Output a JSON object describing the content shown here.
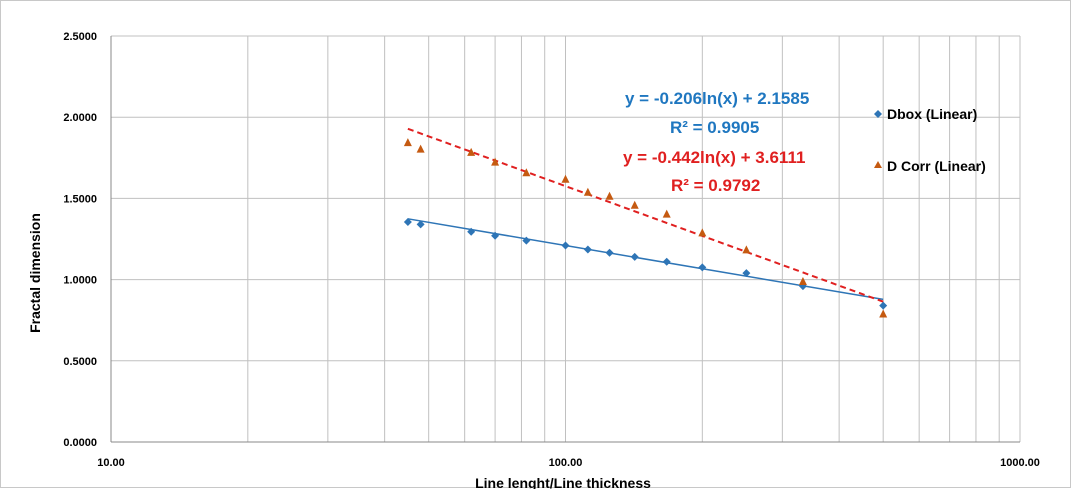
{
  "chart_data": {
    "type": "scatter",
    "title": "",
    "xlabel": "Line lenght/Line thickness",
    "ylabel": "Fractal dimension",
    "x_scale": "log",
    "xlim": [
      10,
      1000
    ],
    "ylim": [
      0,
      2.5
    ],
    "x_tick_values": [
      10,
      100,
      1000
    ],
    "x_tick_labels": [
      "10.00",
      "100.00",
      "1000.00"
    ],
    "y_tick_values": [
      0,
      0.5,
      1.0,
      1.5,
      2.0,
      2.5
    ],
    "y_tick_labels": [
      "0.0000",
      "0.5000",
      "1.0000",
      "1.5000",
      "2.0000",
      "2.5000"
    ],
    "grid": true,
    "legend_position": "right",
    "series": [
      {
        "key": "dbox",
        "legend_label": "Dbox (Linear)",
        "marker": "diamond",
        "color": "#2e75b6",
        "points": [
          [
            45,
            1.355
          ],
          [
            48,
            1.34
          ],
          [
            62,
            1.295
          ],
          [
            70,
            1.27
          ],
          [
            82,
            1.24
          ],
          [
            100,
            1.21
          ],
          [
            112,
            1.185
          ],
          [
            125,
            1.165
          ],
          [
            142,
            1.14
          ],
          [
            167,
            1.11
          ],
          [
            200,
            1.075
          ],
          [
            250,
            1.04
          ],
          [
            333,
            0.96
          ],
          [
            500,
            0.84
          ]
        ],
        "trendline": {
          "type": "log",
          "a": -0.206,
          "b": 2.1585,
          "x_range": [
            45,
            500
          ],
          "style": "solid",
          "color": "#2e75b6",
          "equation": "y = -0.206ln(x) + 2.1585",
          "r2": "R² = 0.9905",
          "label_color": "#1f77c0"
        }
      },
      {
        "key": "dcorr",
        "legend_label": "D Corr (Linear)",
        "marker": "triangle",
        "color": "#c55a11",
        "points": [
          [
            45,
            1.84
          ],
          [
            48,
            1.8
          ],
          [
            62,
            1.78
          ],
          [
            70,
            1.72
          ],
          [
            82,
            1.655
          ],
          [
            100,
            1.615
          ],
          [
            112,
            1.535
          ],
          [
            125,
            1.51
          ],
          [
            142,
            1.455
          ],
          [
            167,
            1.4
          ],
          [
            200,
            1.285
          ],
          [
            250,
            1.18
          ],
          [
            333,
            0.985
          ],
          [
            500,
            0.785
          ]
        ],
        "trendline": {
          "type": "log",
          "a": -0.442,
          "b": 3.6111,
          "x_range": [
            45,
            500
          ],
          "style": "dashed",
          "color": "#e02020",
          "equation": "y = -0.442ln(x) + 3.6111",
          "r2": "R² = 0.9792",
          "label_color": "#e02020"
        }
      }
    ]
  }
}
